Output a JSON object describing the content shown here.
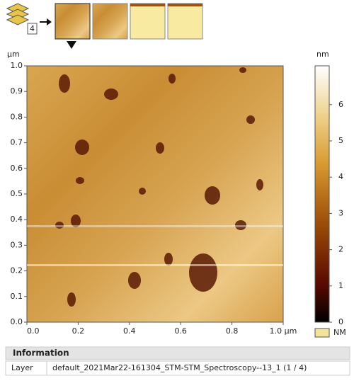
{
  "toolbar": {
    "layer_count": "4"
  },
  "image": {
    "y_unit": "µm",
    "xlim": [
      0,
      1
    ],
    "ylim": [
      0,
      1
    ],
    "xticks": [
      {
        "value": 0,
        "label": "0.0"
      },
      {
        "value": 0.2,
        "label": "0.2"
      },
      {
        "value": 0.4,
        "label": "0.4"
      },
      {
        "value": 0.6,
        "label": "0.6"
      },
      {
        "value": 0.8,
        "label": "0.8"
      },
      {
        "value": 1,
        "label": "1.0 µm"
      }
    ],
    "yticks": [
      {
        "value": 0,
        "label": "0.0"
      },
      {
        "value": 0.1,
        "label": "0.1"
      },
      {
        "value": 0.2,
        "label": "0.2"
      },
      {
        "value": 0.3,
        "label": "0.3"
      },
      {
        "value": 0.4,
        "label": "0.4"
      },
      {
        "value": 0.5,
        "label": "0.5"
      },
      {
        "value": 0.6,
        "label": "0.6"
      },
      {
        "value": 0.7,
        "label": "0.7"
      },
      {
        "value": 0.8,
        "label": "0.8"
      },
      {
        "value": 0.9,
        "label": "0.9"
      },
      {
        "value": 1,
        "label": "1.0"
      }
    ]
  },
  "colorbar": {
    "unit": "nm",
    "zlim": [
      0,
      7.07
    ],
    "zticks": [
      0,
      1,
      2,
      3,
      4,
      5,
      6
    ],
    "legend": "NM"
  },
  "information": {
    "title": "Information",
    "rows": [
      [
        "Layer",
        "default_2021Mar22-161304_STM-STM_Spectroscopy--13_1 (1 / 4)"
      ]
    ]
  }
}
